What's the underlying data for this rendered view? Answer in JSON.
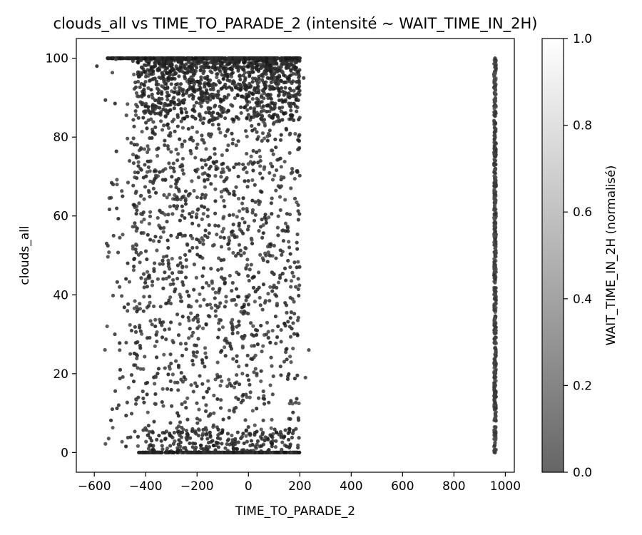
{
  "chart_data": {
    "type": "scatter",
    "title": "clouds_all vs TIME_TO_PARADE_2 (intensité ~ WAIT_TIME_IN_2H)",
    "xlabel": "TIME_TO_PARADE_2",
    "ylabel": "clouds_all",
    "xlim": [
      -670,
      1035
    ],
    "ylim": [
      -5,
      105
    ],
    "xticks": [
      -600,
      -400,
      -200,
      0,
      200,
      400,
      600,
      800,
      1000
    ],
    "xtick_labels": [
      "−600",
      "−400",
      "−200",
      "0",
      "200",
      "400",
      "600",
      "800",
      "1000"
    ],
    "yticks": [
      0,
      20,
      40,
      60,
      80,
      100
    ],
    "ytick_labels": [
      "0",
      "20",
      "40",
      "60",
      "80",
      "100"
    ],
    "grid": false,
    "colormap": "gray (alpha ~0.6)",
    "colorbar": {
      "label": "WAIT_TIME_IN_2H (normalisé)",
      "range": [
        0.0,
        1.0
      ],
      "ticks": [
        0.0,
        0.2,
        0.4,
        0.6,
        0.8,
        1.0
      ],
      "tick_labels": [
        "0.0",
        "0.2",
        "0.4",
        "0.6",
        "0.8",
        "1.0"
      ]
    },
    "point_color": "#1f1f1f",
    "point_samples": [
      {
        "x": -590,
        "y": 98,
        "c": 0.1
      },
      {
        "x": -545,
        "y": 100,
        "c": 0.15
      },
      {
        "x": -530,
        "y": 11,
        "c": 0.2
      },
      {
        "x": -525,
        "y": 55,
        "c": 0.25
      },
      {
        "x": -520,
        "y": 30,
        "c": 0.2
      },
      {
        "x": -505,
        "y": 12,
        "c": 0.15
      },
      {
        "x": -490,
        "y": 65,
        "c": 0.1
      },
      {
        "x": -470,
        "y": 48,
        "c": 0.1
      },
      {
        "x": -460,
        "y": 25,
        "c": 0.3
      },
      {
        "x": -430,
        "y": 4,
        "c": 0.05
      },
      {
        "x": -400,
        "y": 0,
        "c": 0.1
      },
      {
        "x": -300,
        "y": 0,
        "c": 0.05
      },
      {
        "x": -200,
        "y": 0,
        "c": 0.1
      },
      {
        "x": 0,
        "y": 0,
        "c": 0.2
      },
      {
        "x": 180,
        "y": 0,
        "c": 0.15
      },
      {
        "x": -300,
        "y": 100,
        "c": 0.05
      },
      {
        "x": -100,
        "y": 100,
        "c": 0.1
      },
      {
        "x": 100,
        "y": 100,
        "c": 0.1
      },
      {
        "x": 200,
        "y": 100,
        "c": 0.2
      },
      {
        "x": 215,
        "y": 95,
        "c": 0.2
      },
      {
        "x": 235,
        "y": 26,
        "c": 0.3
      },
      {
        "x": 222,
        "y": 19,
        "c": 0.3
      },
      {
        "x": 185,
        "y": 6,
        "c": 0.2
      },
      {
        "x": 960,
        "y": 0,
        "c": 0.3
      },
      {
        "x": 960,
        "y": 50,
        "c": 0.3
      },
      {
        "x": 960,
        "y": 100,
        "c": 0.2
      }
    ]
  }
}
